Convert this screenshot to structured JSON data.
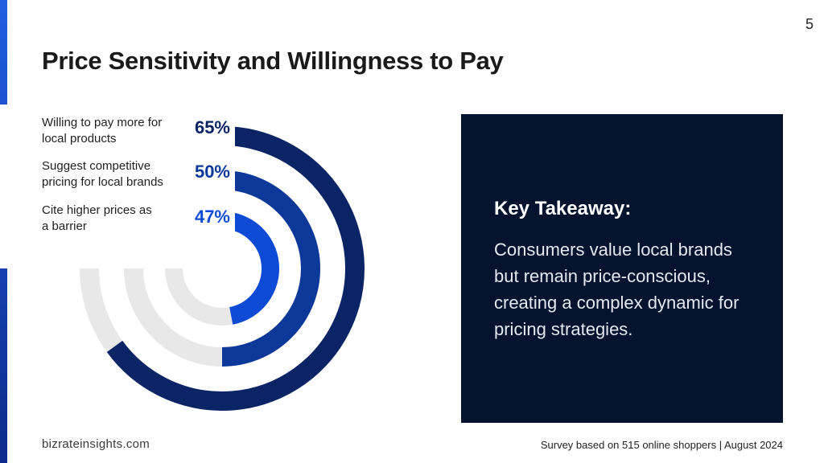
{
  "page_number": "5",
  "title": "Price Sensitivity and Willingness to Pay",
  "chart_data": {
    "type": "radial-bar",
    "max": 100,
    "series": [
      {
        "label_lines": [
          "Willing to pay more for",
          "local products"
        ],
        "value": 65,
        "display": "65%",
        "color": "#0a2466"
      },
      {
        "label_lines": [
          "Suggest competitive",
          "pricing for local brands"
        ],
        "value": 50,
        "display": "50%",
        "color": "#0c3899"
      },
      {
        "label_lines": [
          "Cite higher prices as",
          "a barrier"
        ],
        "value": 47,
        "display": "47%",
        "color": "#0d4ad6"
      }
    ],
    "track_color": "#e8e8e8"
  },
  "takeaway": {
    "title": "Key Takeaway:",
    "body": "Consumers value local brands but remain price-conscious, creating a complex dynamic for pricing strategies."
  },
  "footer": {
    "brand": "bizrateinsights.com",
    "source": "Survey based on 515  online shoppers | August 2024"
  }
}
